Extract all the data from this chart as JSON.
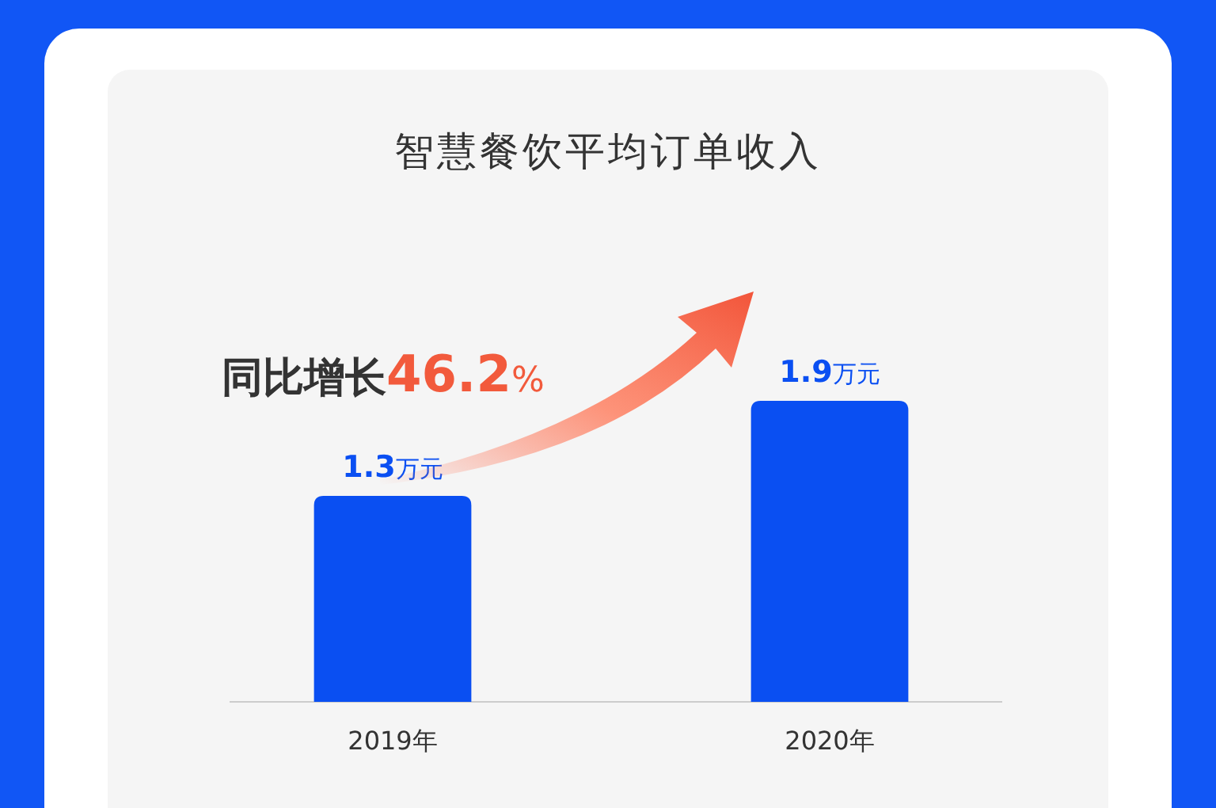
{
  "chart_data": {
    "type": "bar",
    "title": "智慧餐饮平均订单收入",
    "categories": [
      "2019年",
      "2020年"
    ],
    "values": [
      1.3,
      1.9
    ],
    "value_labels": [
      "1.3万元",
      "1.9万元"
    ],
    "color": "#0a4ff2",
    "annotations": [
      "同比增长46.2%"
    ]
  }
}
